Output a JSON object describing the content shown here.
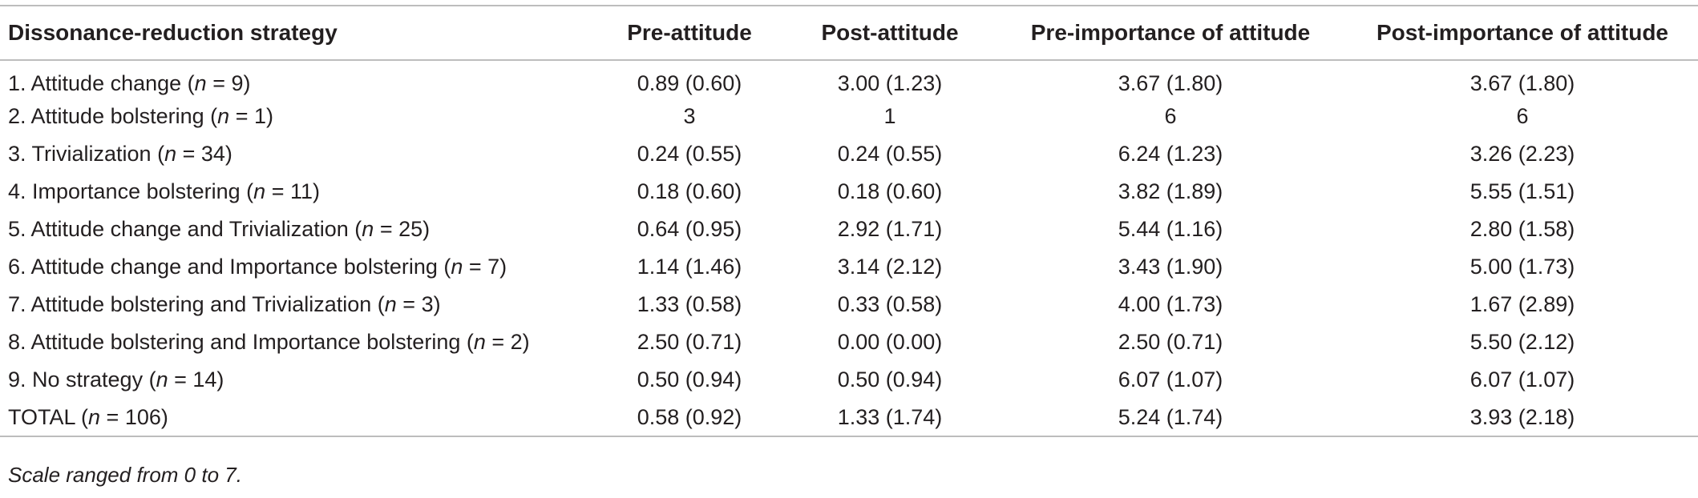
{
  "table": {
    "headers": [
      "Dissonance-reduction strategy",
      "Pre-attitude",
      "Post-attitude",
      "Pre-importance of attitude",
      "Post-importance of attitude"
    ],
    "rows": [
      {
        "strategy_prefix": "1. Attitude change (",
        "n_var": "n",
        "strategy_suffix": " = 9)",
        "cells": [
          "0.89 (0.60)",
          "3.00 (1.23)",
          "3.67 (1.80)",
          "3.67 (1.80)"
        ]
      },
      {
        "strategy_prefix": "2. Attitude bolstering (",
        "n_var": "n",
        "strategy_suffix": " = 1)",
        "cells": [
          "3",
          "1",
          "6",
          "6"
        ]
      },
      {
        "strategy_prefix": "3. Trivialization (",
        "n_var": "n",
        "strategy_suffix": " = 34)",
        "cells": [
          "0.24 (0.55)",
          "0.24 (0.55)",
          "6.24 (1.23)",
          "3.26 (2.23)"
        ]
      },
      {
        "strategy_prefix": "4. Importance bolstering (",
        "n_var": "n",
        "strategy_suffix": " = 11)",
        "cells": [
          "0.18 (0.60)",
          "0.18 (0.60)",
          "3.82 (1.89)",
          "5.55 (1.51)"
        ]
      },
      {
        "strategy_prefix": "5. Attitude change and Trivialization (",
        "n_var": "n",
        "strategy_suffix": " = 25)",
        "cells": [
          "0.64 (0.95)",
          "2.92 (1.71)",
          "5.44 (1.16)",
          "2.80 (1.58)"
        ]
      },
      {
        "strategy_prefix": "6. Attitude change and Importance bolstering (",
        "n_var": "n",
        "strategy_suffix": " = 7)",
        "cells": [
          "1.14 (1.46)",
          "3.14 (2.12)",
          "3.43 (1.90)",
          "5.00 (1.73)"
        ]
      },
      {
        "strategy_prefix": "7. Attitude bolstering and Trivialization (",
        "n_var": "n",
        "strategy_suffix": " = 3)",
        "cells": [
          "1.33 (0.58)",
          "0.33 (0.58)",
          "4.00 (1.73)",
          "1.67 (2.89)"
        ]
      },
      {
        "strategy_prefix": "8. Attitude bolstering and Importance bolstering (",
        "n_var": "n",
        "strategy_suffix": " = 2)",
        "cells": [
          "2.50 (0.71)",
          "0.00 (0.00)",
          "2.50 (0.71)",
          "5.50 (2.12)"
        ]
      },
      {
        "strategy_prefix": "9. No strategy (",
        "n_var": "n",
        "strategy_suffix": " = 14)",
        "cells": [
          "0.50 (0.94)",
          "0.50 (0.94)",
          "6.07 (1.07)",
          "6.07 (1.07)"
        ]
      },
      {
        "strategy_prefix": "TOTAL (",
        "n_var": "n",
        "strategy_suffix": " = 106)",
        "cells": [
          "0.58 (0.92)",
          "1.33 (1.74)",
          "5.24 (1.74)",
          "3.93 (2.18)"
        ]
      }
    ],
    "note": "Scale ranged from 0 to 7."
  },
  "colors": {
    "text": "#231f20",
    "rule": "#bdbdbd"
  }
}
